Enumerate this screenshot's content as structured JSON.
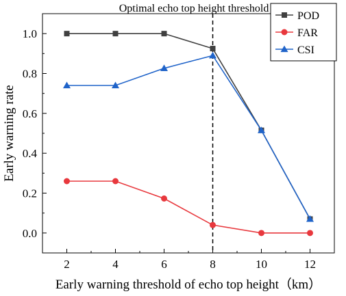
{
  "chart_data": {
    "type": "line",
    "title": "",
    "xlabel": "Early warning threshold of echo top height（km）",
    "ylabel": "Early warning rate",
    "xlim": [
      1,
      13
    ],
    "ylim": [
      -0.1,
      1.1
    ],
    "x": [
      2,
      4,
      6,
      8,
      10,
      12
    ],
    "x_ticks": [
      "2",
      "4",
      "6",
      "8",
      "10",
      "12"
    ],
    "y_ticks": [
      "0.0",
      "0.2",
      "0.4",
      "0.6",
      "0.8",
      "1.0"
    ],
    "y_tick_values": [
      0.0,
      0.2,
      0.4,
      0.6,
      0.8,
      1.0
    ],
    "grid": false,
    "legend_position": "top-right",
    "series": [
      {
        "name": "POD",
        "color": "#404040",
        "marker": "square",
        "values": [
          1.0,
          1.0,
          1.0,
          0.925,
          0.515,
          0.07
        ]
      },
      {
        "name": "FAR",
        "color": "#e8383d",
        "marker": "circle",
        "values": [
          0.26,
          0.26,
          0.173,
          0.04,
          0.0,
          0.0
        ]
      },
      {
        "name": "CSI",
        "color": "#1f63c9",
        "marker": "triangle",
        "values": [
          0.74,
          0.74,
          0.826,
          0.89,
          0.515,
          0.07
        ]
      }
    ],
    "annotation": {
      "text": "Optimal echo top height threshold",
      "x": 8,
      "style": "dashed-vertical"
    }
  }
}
